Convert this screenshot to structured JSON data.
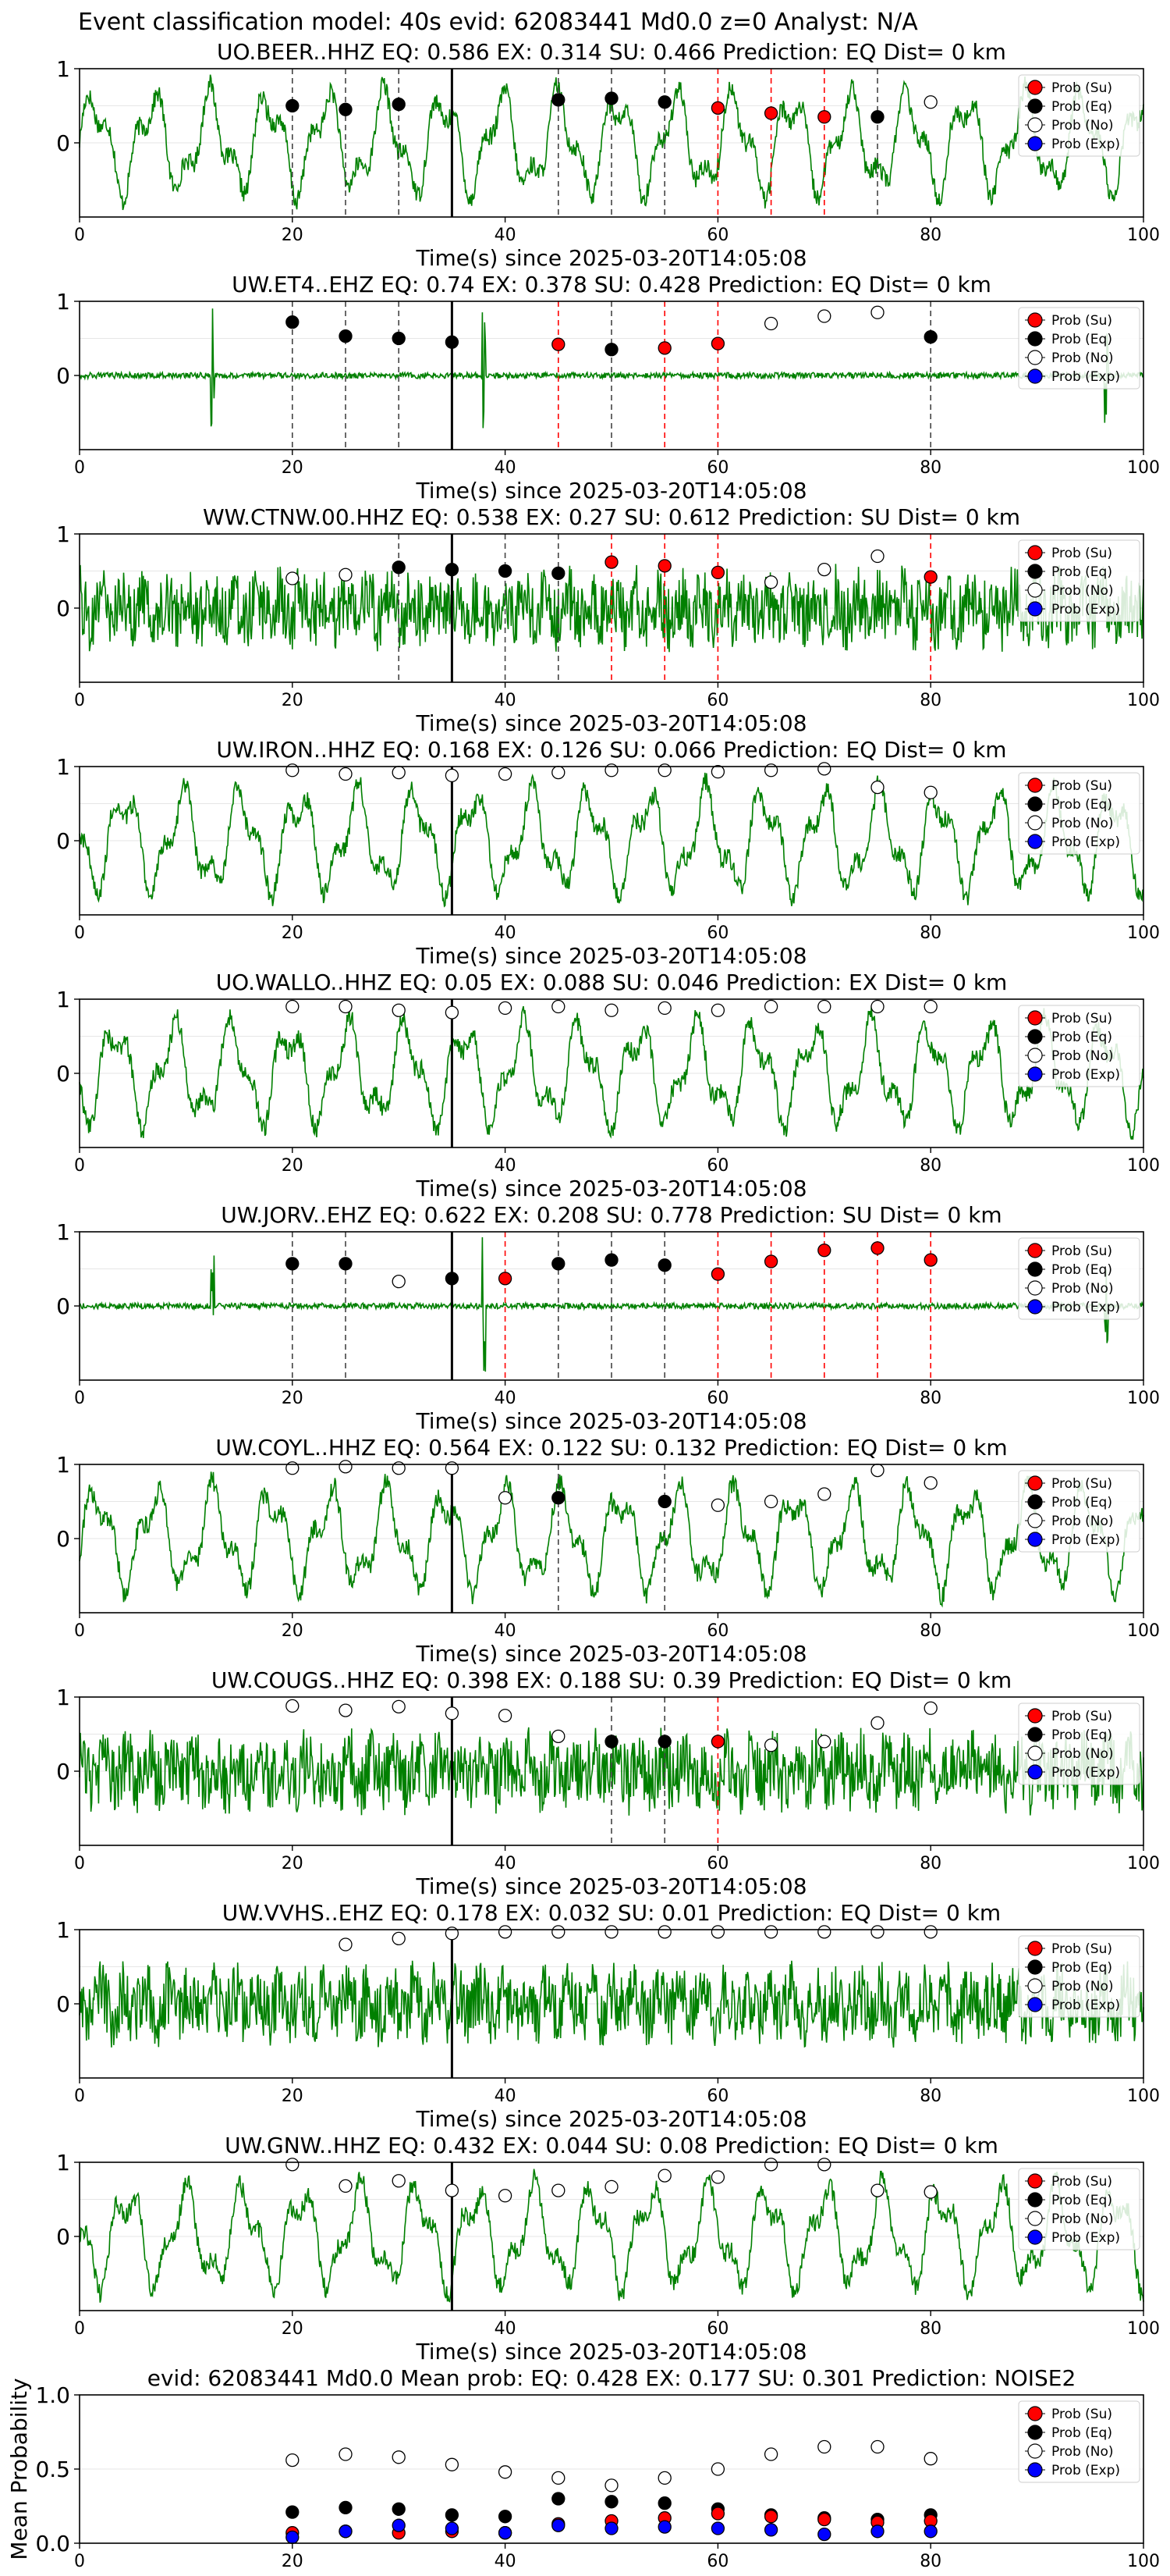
{
  "figure_title": "Event classification model: 40s evid: 62083441 Md0.0 z=0 Analyst: N/A",
  "legend_labels": [
    "Prob (Su)",
    "Prob (Eq)",
    "Prob (No)",
    "Prob (Exp)"
  ],
  "colors": {
    "su": "#ff0000",
    "eq": "#000000",
    "no": "#ffffff",
    "exp": "#0000ff",
    "waveform": "#008000",
    "su_line": "#ff0000",
    "eq_line": "#000000"
  },
  "chart_data": [
    {
      "type": "scatter",
      "station": "UO.BEER..HHZ",
      "title": "UO.BEER..HHZ   EQ: 0.586  EX: 0.314  SU: 0.466   Prediction: EQ    Dist= 0 km",
      "xlabel": "Time(s) since 2025-03-20T14:05:08",
      "xlim": [
        0,
        100
      ],
      "ylim": [
        -1,
        1
      ],
      "xticks": [
        0,
        20,
        40,
        60,
        80,
        100
      ],
      "yticks": [
        0,
        1
      ],
      "origin_time": 35,
      "waveform_style": "smooth",
      "points": [
        {
          "t": 20,
          "p": 0.5,
          "cls": "eq"
        },
        {
          "t": 25,
          "p": 0.45,
          "cls": "eq"
        },
        {
          "t": 30,
          "p": 0.52,
          "cls": "eq"
        },
        {
          "t": 45,
          "p": 0.58,
          "cls": "eq"
        },
        {
          "t": 50,
          "p": 0.6,
          "cls": "eq"
        },
        {
          "t": 55,
          "p": 0.55,
          "cls": "eq"
        },
        {
          "t": 60,
          "p": 0.47,
          "cls": "su"
        },
        {
          "t": 65,
          "p": 0.4,
          "cls": "su"
        },
        {
          "t": 70,
          "p": 0.35,
          "cls": "su"
        },
        {
          "t": 75,
          "p": 0.35,
          "cls": "eq"
        },
        {
          "t": 80,
          "p": 0.55,
          "cls": "no"
        }
      ]
    },
    {
      "type": "scatter",
      "station": "UW.ET4..EHZ",
      "title": "UW.ET4..EHZ   EQ: 0.74  EX: 0.378  SU: 0.428   Prediction: EQ    Dist= 0 km",
      "xlabel": "Time(s) since 2025-03-20T14:05:08",
      "xlim": [
        0,
        100
      ],
      "ylim": [
        -1,
        1
      ],
      "xticks": [
        0,
        20,
        40,
        60,
        80,
        100
      ],
      "yticks": [
        0,
        1
      ],
      "origin_time": 35,
      "waveform_style": "spiky",
      "points": [
        {
          "t": 20,
          "p": 0.72,
          "cls": "eq"
        },
        {
          "t": 25,
          "p": 0.53,
          "cls": "eq"
        },
        {
          "t": 30,
          "p": 0.5,
          "cls": "eq"
        },
        {
          "t": 35,
          "p": 0.45,
          "cls": "eq"
        },
        {
          "t": 45,
          "p": 0.42,
          "cls": "su"
        },
        {
          "t": 50,
          "p": 0.35,
          "cls": "eq"
        },
        {
          "t": 55,
          "p": 0.37,
          "cls": "su"
        },
        {
          "t": 60,
          "p": 0.43,
          "cls": "su"
        },
        {
          "t": 65,
          "p": 0.7,
          "cls": "no"
        },
        {
          "t": 70,
          "p": 0.8,
          "cls": "no"
        },
        {
          "t": 75,
          "p": 0.85,
          "cls": "no"
        },
        {
          "t": 80,
          "p": 0.52,
          "cls": "eq"
        }
      ]
    },
    {
      "type": "scatter",
      "station": "WW.CTNW.00.HHZ",
      "title": "WW.CTNW.00.HHZ   EQ: 0.538  EX: 0.27  SU: 0.612   Prediction: SU    Dist= 0 km",
      "xlabel": "Time(s) since 2025-03-20T14:05:08",
      "xlim": [
        0,
        100
      ],
      "ylim": [
        -1,
        1
      ],
      "xticks": [
        0,
        20,
        40,
        60,
        80,
        100
      ],
      "yticks": [
        0,
        1
      ],
      "origin_time": 35,
      "waveform_style": "noisy",
      "points": [
        {
          "t": 20,
          "p": 0.4,
          "cls": "no"
        },
        {
          "t": 25,
          "p": 0.45,
          "cls": "no"
        },
        {
          "t": 30,
          "p": 0.55,
          "cls": "eq"
        },
        {
          "t": 35,
          "p": 0.52,
          "cls": "eq"
        },
        {
          "t": 40,
          "p": 0.5,
          "cls": "eq"
        },
        {
          "t": 45,
          "p": 0.47,
          "cls": "eq"
        },
        {
          "t": 50,
          "p": 0.62,
          "cls": "su"
        },
        {
          "t": 55,
          "p": 0.57,
          "cls": "su"
        },
        {
          "t": 60,
          "p": 0.48,
          "cls": "su"
        },
        {
          "t": 65,
          "p": 0.35,
          "cls": "no"
        },
        {
          "t": 70,
          "p": 0.52,
          "cls": "no"
        },
        {
          "t": 75,
          "p": 0.7,
          "cls": "no"
        },
        {
          "t": 80,
          "p": 0.42,
          "cls": "su"
        }
      ]
    },
    {
      "type": "scatter",
      "station": "UW.IRON..HHZ",
      "title": "UW.IRON..HHZ   EQ: 0.168  EX: 0.126  SU: 0.066   Prediction: EQ    Dist= 0 km",
      "xlabel": "Time(s) since 2025-03-20T14:05:08",
      "xlim": [
        0,
        100
      ],
      "ylim": [
        -1,
        1
      ],
      "xticks": [
        0,
        20,
        40,
        60,
        80,
        100
      ],
      "yticks": [
        0,
        1
      ],
      "origin_time": 35,
      "waveform_style": "smooth",
      "points": [
        {
          "t": 20,
          "p": 0.95,
          "cls": "no"
        },
        {
          "t": 25,
          "p": 0.9,
          "cls": "no"
        },
        {
          "t": 30,
          "p": 0.92,
          "cls": "no"
        },
        {
          "t": 35,
          "p": 0.88,
          "cls": "no"
        },
        {
          "t": 40,
          "p": 0.9,
          "cls": "no"
        },
        {
          "t": 45,
          "p": 0.92,
          "cls": "no"
        },
        {
          "t": 50,
          "p": 0.95,
          "cls": "no"
        },
        {
          "t": 55,
          "p": 0.95,
          "cls": "no"
        },
        {
          "t": 60,
          "p": 0.93,
          "cls": "no"
        },
        {
          "t": 65,
          "p": 0.95,
          "cls": "no"
        },
        {
          "t": 70,
          "p": 0.97,
          "cls": "no"
        },
        {
          "t": 75,
          "p": 0.72,
          "cls": "no"
        },
        {
          "t": 80,
          "p": 0.65,
          "cls": "no"
        }
      ]
    },
    {
      "type": "scatter",
      "station": "UO.WALLO..HHZ",
      "title": "UO.WALLO..HHZ   EQ: 0.05  EX: 0.088  SU: 0.046   Prediction: EX    Dist= 0 km",
      "xlabel": "Time(s) since 2025-03-20T14:05:08",
      "xlim": [
        0,
        100
      ],
      "ylim": [
        -1,
        1
      ],
      "xticks": [
        0,
        20,
        40,
        60,
        80,
        100
      ],
      "yticks": [
        0,
        1
      ],
      "origin_time": 35,
      "waveform_style": "smooth",
      "points": [
        {
          "t": 20,
          "p": 0.9,
          "cls": "no"
        },
        {
          "t": 25,
          "p": 0.9,
          "cls": "no"
        },
        {
          "t": 30,
          "p": 0.85,
          "cls": "no"
        },
        {
          "t": 35,
          "p": 0.82,
          "cls": "no"
        },
        {
          "t": 40,
          "p": 0.88,
          "cls": "no"
        },
        {
          "t": 45,
          "p": 0.9,
          "cls": "no"
        },
        {
          "t": 50,
          "p": 0.85,
          "cls": "no"
        },
        {
          "t": 55,
          "p": 0.88,
          "cls": "no"
        },
        {
          "t": 60,
          "p": 0.85,
          "cls": "no"
        },
        {
          "t": 65,
          "p": 0.9,
          "cls": "no"
        },
        {
          "t": 70,
          "p": 0.9,
          "cls": "no"
        },
        {
          "t": 75,
          "p": 0.9,
          "cls": "no"
        },
        {
          "t": 80,
          "p": 0.9,
          "cls": "no"
        }
      ]
    },
    {
      "type": "scatter",
      "station": "UW.JORV..EHZ",
      "title": "UW.JORV..EHZ   EQ: 0.622  EX: 0.208  SU: 0.778   Prediction: SU    Dist= 0 km",
      "xlabel": "Time(s) since 2025-03-20T14:05:08",
      "xlim": [
        0,
        100
      ],
      "ylim": [
        -1,
        1
      ],
      "xticks": [
        0,
        20,
        40,
        60,
        80,
        100
      ],
      "yticks": [
        0,
        1
      ],
      "origin_time": 35,
      "waveform_style": "spiky",
      "points": [
        {
          "t": 20,
          "p": 0.57,
          "cls": "eq"
        },
        {
          "t": 25,
          "p": 0.57,
          "cls": "eq"
        },
        {
          "t": 30,
          "p": 0.33,
          "cls": "no"
        },
        {
          "t": 35,
          "p": 0.37,
          "cls": "eq"
        },
        {
          "t": 40,
          "p": 0.37,
          "cls": "su"
        },
        {
          "t": 45,
          "p": 0.57,
          "cls": "eq"
        },
        {
          "t": 50,
          "p": 0.62,
          "cls": "eq"
        },
        {
          "t": 55,
          "p": 0.55,
          "cls": "eq"
        },
        {
          "t": 60,
          "p": 0.43,
          "cls": "su"
        },
        {
          "t": 65,
          "p": 0.6,
          "cls": "su"
        },
        {
          "t": 70,
          "p": 0.75,
          "cls": "su"
        },
        {
          "t": 75,
          "p": 0.78,
          "cls": "su"
        },
        {
          "t": 80,
          "p": 0.62,
          "cls": "su"
        }
      ]
    },
    {
      "type": "scatter",
      "station": "UW.COYL..HHZ",
      "title": "UW.COYL..HHZ   EQ: 0.564  EX: 0.122  SU: 0.132   Prediction: EQ    Dist= 0 km",
      "xlabel": "Time(s) since 2025-03-20T14:05:08",
      "xlim": [
        0,
        100
      ],
      "ylim": [
        -1,
        1
      ],
      "xticks": [
        0,
        20,
        40,
        60,
        80,
        100
      ],
      "yticks": [
        0,
        1
      ],
      "origin_time": 35,
      "waveform_style": "smooth",
      "points": [
        {
          "t": 20,
          "p": 0.95,
          "cls": "no"
        },
        {
          "t": 25,
          "p": 0.97,
          "cls": "no"
        },
        {
          "t": 30,
          "p": 0.95,
          "cls": "no"
        },
        {
          "t": 35,
          "p": 0.95,
          "cls": "no"
        },
        {
          "t": 40,
          "p": 0.55,
          "cls": "no"
        },
        {
          "t": 45,
          "p": 0.55,
          "cls": "eq"
        },
        {
          "t": 55,
          "p": 0.5,
          "cls": "eq"
        },
        {
          "t": 60,
          "p": 0.45,
          "cls": "no"
        },
        {
          "t": 65,
          "p": 0.5,
          "cls": "no"
        },
        {
          "t": 70,
          "p": 0.6,
          "cls": "no"
        },
        {
          "t": 75,
          "p": 0.92,
          "cls": "no"
        },
        {
          "t": 80,
          "p": 0.75,
          "cls": "no"
        }
      ]
    },
    {
      "type": "scatter",
      "station": "UW.COUGS..HHZ",
      "title": "UW.COUGS..HHZ   EQ: 0.398  EX: 0.188  SU: 0.39   Prediction: EQ    Dist= 0 km",
      "xlabel": "Time(s) since 2025-03-20T14:05:08",
      "xlim": [
        0,
        100
      ],
      "ylim": [
        -1,
        1
      ],
      "xticks": [
        0,
        20,
        40,
        60,
        80,
        100
      ],
      "yticks": [
        0,
        1
      ],
      "origin_time": 35,
      "waveform_style": "noisy",
      "points": [
        {
          "t": 20,
          "p": 0.88,
          "cls": "no"
        },
        {
          "t": 25,
          "p": 0.82,
          "cls": "no"
        },
        {
          "t": 30,
          "p": 0.87,
          "cls": "no"
        },
        {
          "t": 35,
          "p": 0.78,
          "cls": "no"
        },
        {
          "t": 40,
          "p": 0.75,
          "cls": "no"
        },
        {
          "t": 45,
          "p": 0.47,
          "cls": "no"
        },
        {
          "t": 50,
          "p": 0.4,
          "cls": "eq"
        },
        {
          "t": 55,
          "p": 0.4,
          "cls": "eq"
        },
        {
          "t": 60,
          "p": 0.4,
          "cls": "su"
        },
        {
          "t": 65,
          "p": 0.35,
          "cls": "no"
        },
        {
          "t": 70,
          "p": 0.4,
          "cls": "no"
        },
        {
          "t": 75,
          "p": 0.65,
          "cls": "no"
        },
        {
          "t": 80,
          "p": 0.85,
          "cls": "no"
        }
      ]
    },
    {
      "type": "scatter",
      "station": "UW.VVHS..EHZ",
      "title": "UW.VVHS..EHZ   EQ: 0.178  EX: 0.032  SU: 0.01   Prediction: EQ    Dist= 0 km",
      "xlabel": "Time(s) since 2025-03-20T14:05:08",
      "xlim": [
        0,
        100
      ],
      "ylim": [
        -1,
        1
      ],
      "xticks": [
        0,
        20,
        40,
        60,
        80,
        100
      ],
      "yticks": [
        0,
        1
      ],
      "origin_time": 35,
      "waveform_style": "noisy",
      "points": [
        {
          "t": 25,
          "p": 0.8,
          "cls": "no"
        },
        {
          "t": 30,
          "p": 0.88,
          "cls": "no"
        },
        {
          "t": 35,
          "p": 0.95,
          "cls": "no"
        },
        {
          "t": 40,
          "p": 0.97,
          "cls": "no"
        },
        {
          "t": 45,
          "p": 0.97,
          "cls": "no"
        },
        {
          "t": 50,
          "p": 0.97,
          "cls": "no"
        },
        {
          "t": 55,
          "p": 0.97,
          "cls": "no"
        },
        {
          "t": 60,
          "p": 0.97,
          "cls": "no"
        },
        {
          "t": 65,
          "p": 0.97,
          "cls": "no"
        },
        {
          "t": 70,
          "p": 0.97,
          "cls": "no"
        },
        {
          "t": 75,
          "p": 0.97,
          "cls": "no"
        },
        {
          "t": 80,
          "p": 0.97,
          "cls": "no"
        }
      ]
    },
    {
      "type": "scatter",
      "station": "UW.GNW..HHZ",
      "title": "UW.GNW..HHZ   EQ: 0.432  EX: 0.044  SU: 0.08   Prediction: EQ    Dist= 0 km",
      "xlabel": "Time(s) since 2025-03-20T14:05:08",
      "xlim": [
        0,
        100
      ],
      "ylim": [
        -1,
        1
      ],
      "xticks": [
        0,
        20,
        40,
        60,
        80,
        100
      ],
      "yticks": [
        0,
        1
      ],
      "origin_time": 35,
      "waveform_style": "smooth",
      "points": [
        {
          "t": 20,
          "p": 0.97,
          "cls": "no"
        },
        {
          "t": 25,
          "p": 0.68,
          "cls": "no"
        },
        {
          "t": 30,
          "p": 0.75,
          "cls": "no"
        },
        {
          "t": 35,
          "p": 0.62,
          "cls": "no"
        },
        {
          "t": 40,
          "p": 0.55,
          "cls": "no"
        },
        {
          "t": 45,
          "p": 0.62,
          "cls": "no"
        },
        {
          "t": 50,
          "p": 0.67,
          "cls": "no"
        },
        {
          "t": 55,
          "p": 0.82,
          "cls": "no"
        },
        {
          "t": 60,
          "p": 0.8,
          "cls": "no"
        },
        {
          "t": 65,
          "p": 0.97,
          "cls": "no"
        },
        {
          "t": 70,
          "p": 0.97,
          "cls": "no"
        },
        {
          "t": 75,
          "p": 0.62,
          "cls": "no"
        },
        {
          "t": 80,
          "p": 0.6,
          "cls": "no"
        }
      ]
    },
    {
      "type": "scatter",
      "station": "mean",
      "title": "evid: 62083441  Md0.0   Mean prob:   EQ: 0.428  EX: 0.177  SU: 0.301   Prediction: NOISE2",
      "xlabel": "",
      "ylabel": "Mean Probability",
      "xlim": [
        0,
        100
      ],
      "ylim": [
        0,
        1
      ],
      "xticks": [
        0,
        20,
        40,
        60,
        80,
        100
      ],
      "yticks": [
        "0.0",
        "0.5",
        "1.0"
      ],
      "x": [
        20,
        25,
        30,
        35,
        40,
        45,
        50,
        55,
        60,
        65,
        70,
        75,
        80
      ],
      "series": [
        {
          "cls": "no",
          "values": [
            0.56,
            0.6,
            0.58,
            0.53,
            0.48,
            0.44,
            0.39,
            0.44,
            0.5,
            0.6,
            0.65,
            0.65,
            0.57
          ]
        },
        {
          "cls": "eq",
          "values": [
            0.21,
            0.24,
            0.23,
            0.19,
            0.18,
            0.3,
            0.28,
            0.27,
            0.23,
            0.19,
            0.17,
            0.16,
            0.19
          ]
        },
        {
          "cls": "su",
          "values": [
            0.07,
            0.08,
            0.07,
            0.08,
            0.07,
            0.13,
            0.15,
            0.17,
            0.2,
            0.18,
            0.16,
            0.14,
            0.15
          ]
        },
        {
          "cls": "exp",
          "values": [
            0.04,
            0.08,
            0.12,
            0.1,
            0.07,
            0.12,
            0.1,
            0.11,
            0.1,
            0.09,
            0.06,
            0.08,
            0.08
          ]
        }
      ]
    }
  ]
}
